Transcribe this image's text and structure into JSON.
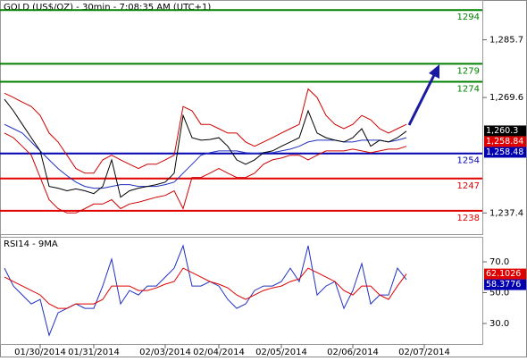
{
  "chart_data": [
    {
      "type": "line",
      "title": "GOLD (US$/OZ) - 30min - 7:08:35 AM (UTC+1)",
      "ylim": [
        1231.5,
        1296.8
      ],
      "yticks": [
        {
          "value": 1285.7,
          "label": "1,285.7"
        },
        {
          "value": 1269.6,
          "label": "1,269.6"
        },
        {
          "value": 1237.4,
          "label": "1,237.4"
        }
      ],
      "levels": [
        {
          "value": 1294,
          "color": "#008000"
        },
        {
          "value": 1279,
          "color": "#008000"
        },
        {
          "value": 1274,
          "color": "#008000"
        },
        {
          "value": 1254,
          "color": "#0000b0"
        },
        {
          "value": 1247,
          "color": "#e00000"
        },
        {
          "value": 1238,
          "color": "#e00000"
        }
      ],
      "price_tags": [
        {
          "value": 1260.3,
          "label": "1,260.3",
          "color": "#000000"
        },
        {
          "value": 1258.84,
          "label": "1,258.84",
          "color": "#e00000"
        },
        {
          "value": 1258.48,
          "label": "1,258.48",
          "color": "#0000b0"
        }
      ],
      "series": [
        {
          "color": "#d00000",
          "values": [
            1270.8,
            1269.6,
            1268.3,
            1267.1,
            1264.6,
            1259.7,
            1257.2,
            1253.5,
            1249.8,
            1248.5,
            1248.5,
            1252.2,
            1253.5,
            1252.2,
            1251.0,
            1249.8,
            1251.0,
            1251.0,
            1252.2,
            1253.5,
            1267.1,
            1265.9,
            1262.1,
            1262.1,
            1260.9,
            1259.7,
            1259.7,
            1257.2,
            1256.0,
            1257.2,
            1258.4,
            1259.7,
            1260.9,
            1262.1,
            1272.0,
            1269.6,
            1264.6,
            1262.1,
            1260.9,
            1262.1,
            1264.6,
            1263.4,
            1260.9,
            1259.7,
            1260.9,
            1262.1,
            null,
            null,
            null,
            null,
            null,
            null,
            null,
            null
          ]
        },
        {
          "color": "#d00000",
          "values": [
            1259.7,
            1258.4,
            1256.0,
            1253.5,
            1247.3,
            1241.1,
            1238.6,
            1237.4,
            1237.4,
            1238.6,
            1239.9,
            1239.9,
            1241.1,
            1238.6,
            1239.9,
            1240.4,
            1241.1,
            1241.8,
            1242.3,
            1243.6,
            1238.6,
            1247.3,
            1247.3,
            1248.5,
            1249.8,
            1248.5,
            1247.3,
            1247.3,
            1248.5,
            1251.0,
            1252.2,
            1252.7,
            1253.5,
            1253.5,
            1252.2,
            1253.5,
            1254.7,
            1254.7,
            1254.7,
            1255.2,
            1254.7,
            1254.2,
            1254.7,
            1255.2,
            1255.2,
            1256.0,
            null,
            null,
            null,
            null,
            null,
            null,
            null,
            null
          ]
        },
        {
          "color": "#2030c0",
          "values": [
            1262.1,
            1260.9,
            1259.7,
            1257.2,
            1254.7,
            1252.2,
            1249.8,
            1247.8,
            1246.0,
            1244.8,
            1244.3,
            1244.3,
            1244.8,
            1245.3,
            1245.3,
            1244.8,
            1244.8,
            1244.8,
            1245.3,
            1246.0,
            1248.5,
            1251.0,
            1253.5,
            1254.2,
            1254.7,
            1254.7,
            1254.7,
            1254.2,
            1254.0,
            1254.2,
            1254.2,
            1254.7,
            1255.2,
            1256.0,
            1257.2,
            1257.7,
            1257.7,
            1257.7,
            1257.2,
            1257.2,
            1257.7,
            1257.7,
            1257.7,
            1257.2,
            1257.7,
            1258.4,
            null,
            null,
            null,
            null,
            null,
            null,
            null,
            null
          ]
        },
        {
          "color": "#000000",
          "values": [
            1269.1,
            1265.9,
            1262.1,
            1258.4,
            1254.7,
            1244.8,
            1244.3,
            1243.6,
            1244.1,
            1243.6,
            1242.8,
            1244.8,
            1252.2,
            1241.8,
            1243.6,
            1244.3,
            1244.8,
            1245.3,
            1246.0,
            1248.5,
            1264.6,
            1258.4,
            1257.7,
            1257.9,
            1258.4,
            1256.0,
            1252.2,
            1251.0,
            1252.2,
            1254.2,
            1254.7,
            1256.0,
            1257.2,
            1258.4,
            1265.9,
            1259.7,
            1258.4,
            1257.7,
            1257.2,
            1258.4,
            1260.9,
            1256.0,
            1257.7,
            1257.2,
            1258.4,
            1260.2,
            null,
            null,
            null,
            null,
            null,
            null,
            null,
            null
          ]
        }
      ]
    },
    {
      "type": "line",
      "title": "RSI14 - 9MA",
      "ylim": [
        16.7,
        86.2
      ],
      "yticks": [
        {
          "value": 70,
          "label": "70.0"
        },
        {
          "value": 50,
          "label": "50.0"
        },
        {
          "value": 30,
          "label": "30.0"
        }
      ],
      "price_tags": [
        {
          "value": 62.1026,
          "color": "#e00000"
        },
        {
          "value": 58.3776,
          "color": "#0000b0"
        }
      ],
      "categories": [
        null,
        null,
        null,
        null,
        "01/30/2014",
        null,
        null,
        null,
        null,
        null,
        "01/31/2014",
        null,
        null,
        null,
        null,
        null,
        null,
        null,
        "02/03/2014",
        null,
        null,
        null,
        null,
        null,
        "02/04/2014",
        null,
        null,
        null,
        null,
        null,
        null,
        "02/05/2014",
        null,
        null,
        null,
        null,
        null,
        null,
        null,
        "02/06/2014",
        null,
        null,
        null,
        null,
        null,
        null,
        null,
        "02/07/2014",
        null,
        null,
        null,
        null,
        null,
        null
      ],
      "series": [
        {
          "color": "#2030c0",
          "values": [
            65.9,
            54.3,
            48.5,
            42.7,
            45.6,
            22.4,
            36.9,
            39.8,
            42.7,
            39.8,
            39.8,
            54.3,
            71.7,
            42.7,
            51.4,
            48.5,
            54.3,
            54.3,
            60.1,
            65.9,
            80.4,
            54.3,
            54.3,
            57.2,
            54.3,
            45.6,
            39.8,
            42.7,
            51.4,
            54.3,
            54.3,
            57.2,
            65.9,
            57.2,
            80.4,
            48.5,
            54.3,
            57.2,
            39.8,
            51.4,
            68.8,
            42.7,
            48.5,
            48.5,
            65.9,
            58.4,
            null,
            null,
            null,
            null,
            null,
            null,
            null,
            null
          ]
        },
        {
          "color": "#e00000",
          "values": [
            60.1,
            57.2,
            54.3,
            51.4,
            48.5,
            42.7,
            39.8,
            39.8,
            42.7,
            42.7,
            42.7,
            45.6,
            54.3,
            54.3,
            54.3,
            51.4,
            51.4,
            53.1,
            55.5,
            57.2,
            65.9,
            63.0,
            60.1,
            57.2,
            55.5,
            53.1,
            48.5,
            45.6,
            48.5,
            51.4,
            53.1,
            54.3,
            57.2,
            58.9,
            65.9,
            63.0,
            60.1,
            57.2,
            51.4,
            48.5,
            54.3,
            54.3,
            48.5,
            45.6,
            54.3,
            62.1,
            null,
            null,
            null,
            null,
            null,
            null,
            null,
            null
          ]
        }
      ]
    }
  ]
}
